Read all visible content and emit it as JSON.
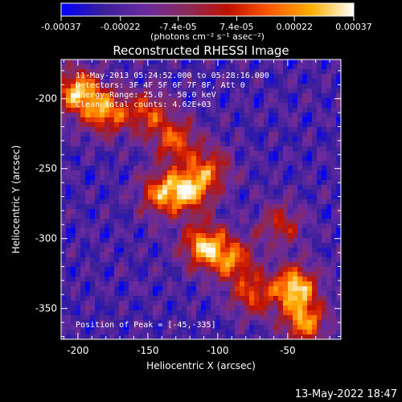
{
  "chart_data": {
    "type": "heatmap",
    "title": "Reconstructed RHESSI Image",
    "xlabel": "Heliocentric X (arcsec)",
    "ylabel": "Heliocentric Y (arcsec)",
    "xlim": [
      -212,
      -12
    ],
    "ylim": [
      -372,
      -172
    ],
    "x_ticks": [
      -200,
      -150,
      -100,
      -50
    ],
    "y_ticks": [
      -200,
      -250,
      -300,
      -350
    ],
    "colorbar": {
      "label": "(photons cm⁻² s⁻¹ asec⁻²)",
      "ticks": [
        -0.00037,
        -0.00022,
        -7.4e-05,
        7.4e-05,
        0.00022,
        0.00037
      ],
      "tick_labels": [
        "-0.00037",
        "-0.00022",
        "-7.4e-05",
        "7.4e-05",
        "0.00022",
        "0.00037"
      ],
      "range": [
        -0.00037,
        0.00037
      ],
      "colors": [
        "#0000ff",
        "#3a1f9a",
        "#6a2aa0",
        "#8a2a5a",
        "#c01000",
        "#ff5a00",
        "#ffb000",
        "#ffffff"
      ]
    },
    "annotations": [
      "11-May-2013 05:24:52.000 to 05:28:16.000",
      "Detectors: 3F 4F 5F 6F 7F 8F, Att 0",
      "Energy Range: 25.0 - 50.0 keV",
      "Clean    Total counts: 4.62E+03"
    ],
    "peak_label": "Position of Peak = [-45,-335]",
    "peak": [
      -45,
      -335
    ],
    "emission_blobs": [
      {
        "x": -200,
        "y": -195,
        "level": 0.95
      },
      {
        "x": -180,
        "y": -210,
        "level": 0.8
      },
      {
        "x": -150,
        "y": -210,
        "level": 0.6
      },
      {
        "x": -130,
        "y": -230,
        "level": 0.65
      },
      {
        "x": -120,
        "y": -265,
        "level": 0.85
      },
      {
        "x": -140,
        "y": -268,
        "level": 0.75
      },
      {
        "x": -105,
        "y": -250,
        "level": 0.55
      },
      {
        "x": -110,
        "y": -305,
        "level": 0.9
      },
      {
        "x": -90,
        "y": -315,
        "level": 0.7
      },
      {
        "x": -75,
        "y": -340,
        "level": 0.6
      },
      {
        "x": -45,
        "y": -335,
        "level": 1.0
      },
      {
        "x": -38,
        "y": -360,
        "level": 0.8
      },
      {
        "x": -55,
        "y": -290,
        "level": 0.5
      }
    ]
  },
  "timestamp": "13-May-2022 18:47"
}
